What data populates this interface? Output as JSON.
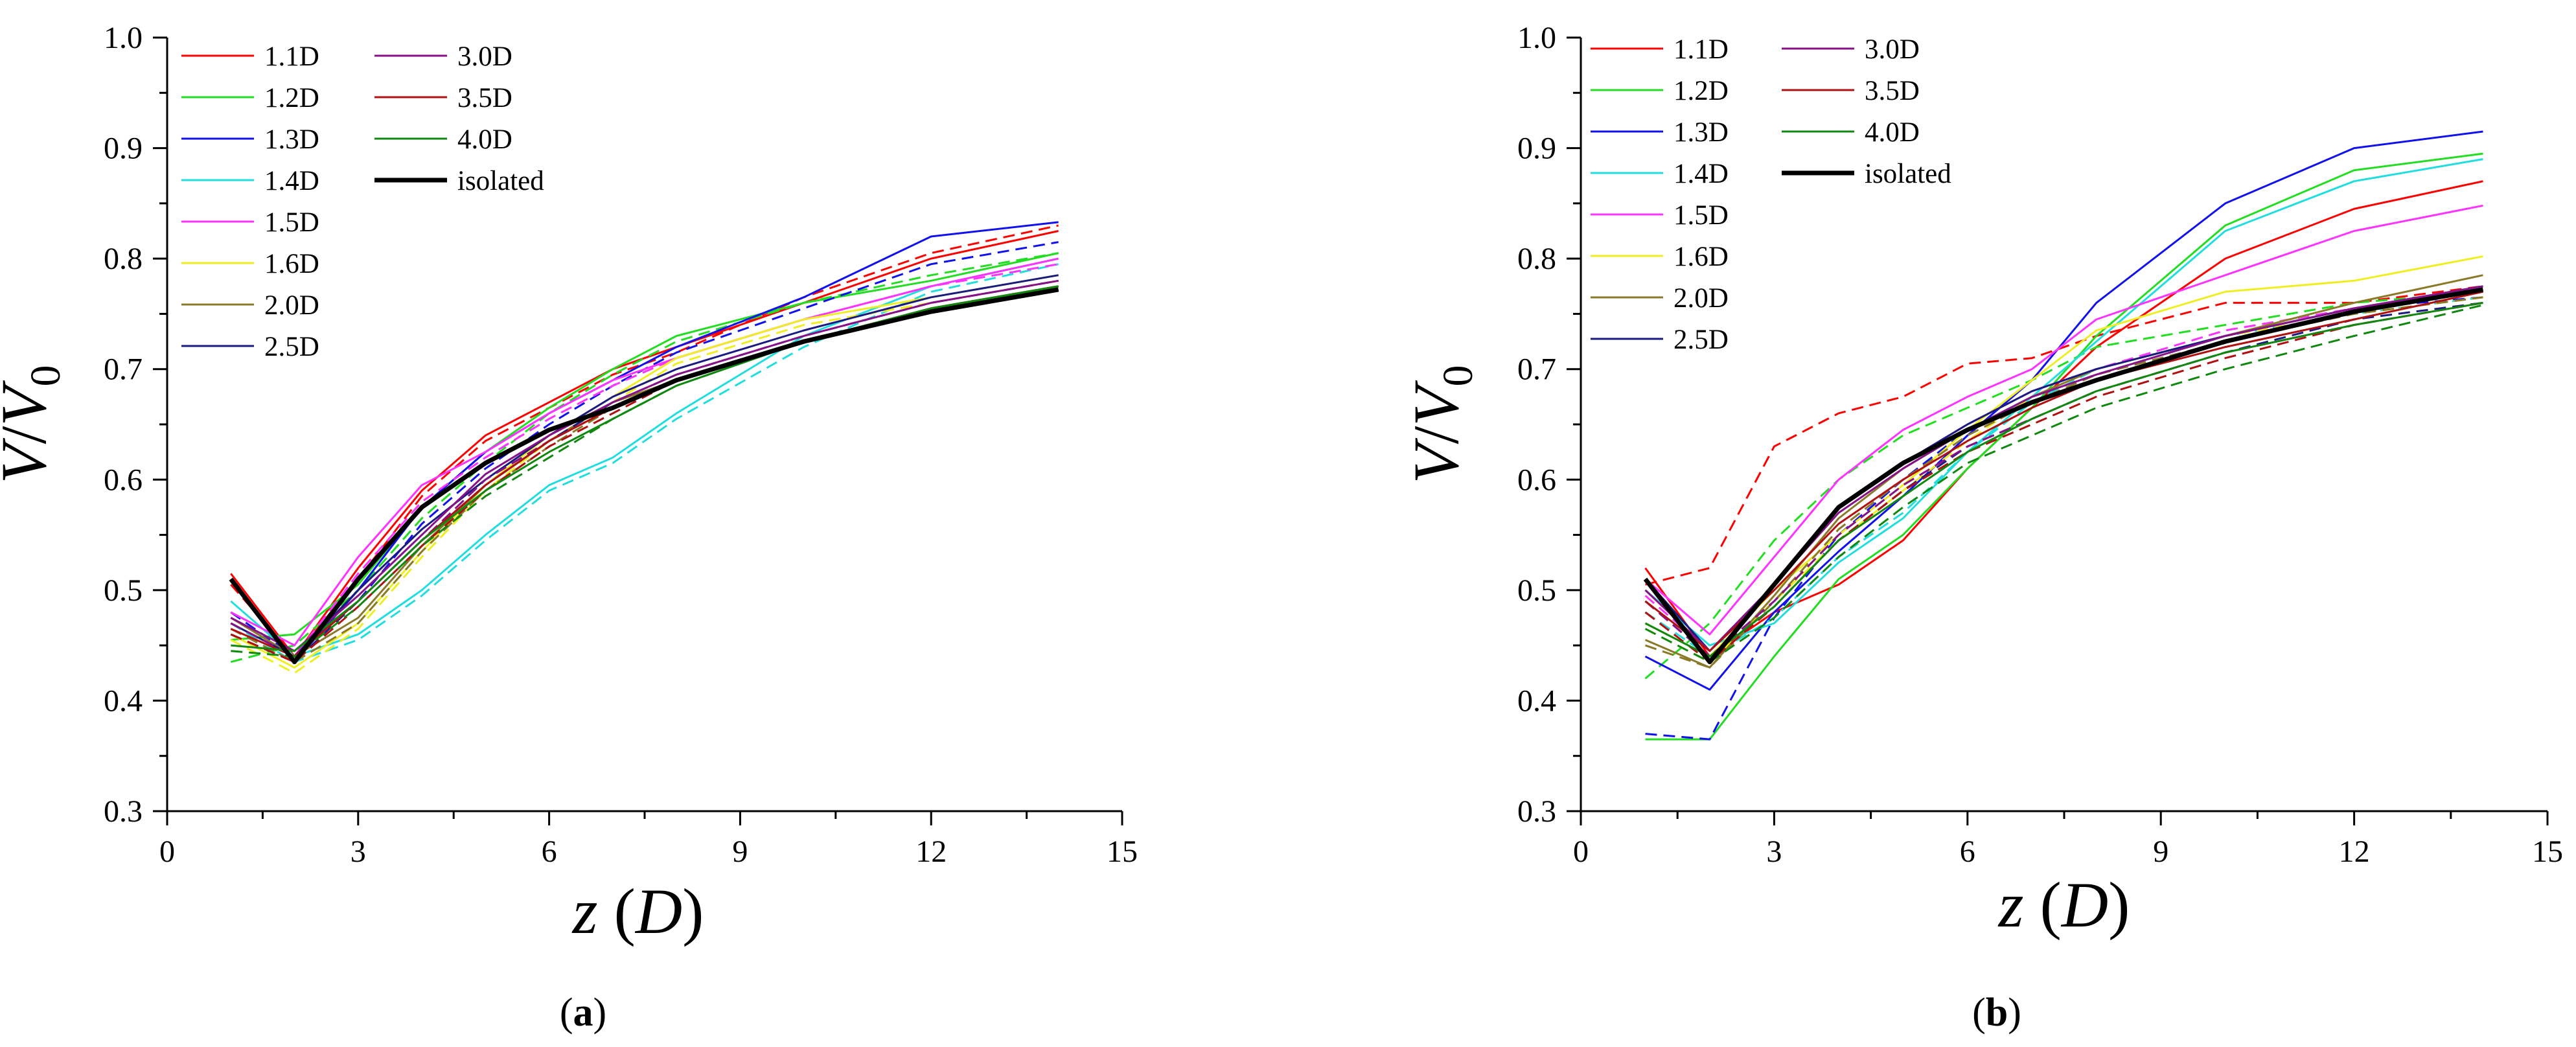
{
  "colors": {
    "1.1D": "#ff0000",
    "1.2D": "#22dd22",
    "1.3D": "#1111ee",
    "1.4D": "#22dddd",
    "1.5D": "#ff33ff",
    "1.6D": "#eeee22",
    "2.0D": "#8a7a28",
    "2.5D": "#1a1a80",
    "3.0D": "#881188",
    "3.5D": "#b01010",
    "4.0D": "#108810",
    "isolated": "#000000"
  },
  "legend_order": [
    "1.1D",
    "1.2D",
    "1.3D",
    "1.4D",
    "1.5D",
    "1.6D",
    "2.0D",
    "2.5D",
    "3.0D",
    "3.5D",
    "4.0D",
    "isolated"
  ],
  "chart_data": [
    {
      "type": "line",
      "panel_label": "(a)",
      "xlabel": "z (D)",
      "ylabel": "V/V0",
      "xlim": [
        0,
        15
      ],
      "ylim": [
        0.3,
        1.0
      ],
      "xticks": [
        0,
        3,
        6,
        9,
        12,
        15
      ],
      "yticks": [
        0.3,
        0.4,
        0.5,
        0.6,
        0.7,
        0.8,
        0.9,
        1.0
      ],
      "x": [
        1,
        2,
        3,
        4,
        5,
        6,
        7,
        8,
        10,
        12,
        14
      ],
      "series": [
        {
          "name": "1.1D",
          "style": "solid",
          "values": [
            0.515,
            0.44,
            0.52,
            0.59,
            0.64,
            0.67,
            0.7,
            0.72,
            0.76,
            0.8,
            0.825
          ]
        },
        {
          "name": "1.1D",
          "style": "dashed",
          "values": [
            0.505,
            0.44,
            0.51,
            0.585,
            0.635,
            0.665,
            0.695,
            0.715,
            0.765,
            0.805,
            0.83
          ]
        },
        {
          "name": "1.2D",
          "style": "solid",
          "values": [
            0.455,
            0.46,
            0.505,
            0.575,
            0.625,
            0.665,
            0.7,
            0.73,
            0.76,
            0.78,
            0.805
          ]
        },
        {
          "name": "1.2D",
          "style": "dashed",
          "values": [
            0.435,
            0.45,
            0.5,
            0.565,
            0.615,
            0.66,
            0.695,
            0.725,
            0.76,
            0.785,
            0.805
          ]
        },
        {
          "name": "1.3D",
          "style": "solid",
          "values": [
            0.51,
            0.435,
            0.5,
            0.575,
            0.625,
            0.66,
            0.69,
            0.72,
            0.765,
            0.82,
            0.833
          ]
        },
        {
          "name": "1.3D",
          "style": "dashed",
          "values": [
            0.48,
            0.44,
            0.49,
            0.56,
            0.61,
            0.65,
            0.685,
            0.715,
            0.755,
            0.795,
            0.815
          ]
        },
        {
          "name": "1.4D",
          "style": "solid",
          "values": [
            0.49,
            0.44,
            0.46,
            0.5,
            0.55,
            0.595,
            0.62,
            0.66,
            0.73,
            0.775,
            0.8
          ]
        },
        {
          "name": "1.4D",
          "style": "dashed",
          "values": [
            0.47,
            0.435,
            0.455,
            0.495,
            0.545,
            0.59,
            0.615,
            0.655,
            0.72,
            0.77,
            0.795
          ]
        },
        {
          "name": "1.5D",
          "style": "solid",
          "values": [
            0.48,
            0.45,
            0.53,
            0.595,
            0.625,
            0.66,
            0.69,
            0.71,
            0.745,
            0.775,
            0.8
          ]
        },
        {
          "name": "1.5D",
          "style": "dashed",
          "values": [
            0.465,
            0.44,
            0.515,
            0.58,
            0.62,
            0.655,
            0.685,
            0.71,
            0.745,
            0.775,
            0.795
          ]
        },
        {
          "name": "1.6D",
          "style": "solid",
          "values": [
            0.46,
            0.43,
            0.47,
            0.535,
            0.595,
            0.64,
            0.675,
            0.71,
            0.745,
            0.765,
            0.785
          ]
        },
        {
          "name": "1.6D",
          "style": "dashed",
          "values": [
            0.455,
            0.425,
            0.465,
            0.53,
            0.59,
            0.635,
            0.67,
            0.705,
            0.74,
            0.76,
            0.78
          ]
        },
        {
          "name": "2.0D",
          "style": "solid",
          "values": [
            0.475,
            0.44,
            0.475,
            0.54,
            0.595,
            0.635,
            0.67,
            0.69,
            0.725,
            0.755,
            0.775
          ]
        },
        {
          "name": "2.0D",
          "style": "dashed",
          "values": [
            0.465,
            0.435,
            0.47,
            0.535,
            0.59,
            0.63,
            0.665,
            0.69,
            0.725,
            0.755,
            0.775
          ]
        },
        {
          "name": "2.5D",
          "style": "solid",
          "values": [
            0.47,
            0.44,
            0.5,
            0.555,
            0.6,
            0.64,
            0.675,
            0.7,
            0.735,
            0.765,
            0.785
          ]
        },
        {
          "name": "2.5D",
          "style": "dashed",
          "values": [
            0.46,
            0.435,
            0.49,
            0.545,
            0.595,
            0.635,
            0.67,
            0.695,
            0.73,
            0.76,
            0.78
          ]
        },
        {
          "name": "3.0D",
          "style": "solid",
          "values": [
            0.475,
            0.445,
            0.495,
            0.55,
            0.605,
            0.64,
            0.67,
            0.695,
            0.73,
            0.76,
            0.78
          ]
        },
        {
          "name": "3.0D",
          "style": "dashed",
          "values": [
            0.47,
            0.44,
            0.49,
            0.545,
            0.6,
            0.635,
            0.665,
            0.69,
            0.725,
            0.755,
            0.775
          ]
        },
        {
          "name": "3.5D",
          "style": "solid",
          "values": [
            0.465,
            0.44,
            0.49,
            0.545,
            0.595,
            0.635,
            0.665,
            0.69,
            0.725,
            0.755,
            0.775
          ]
        },
        {
          "name": "3.5D",
          "style": "dashed",
          "values": [
            0.46,
            0.435,
            0.485,
            0.54,
            0.59,
            0.63,
            0.66,
            0.69,
            0.725,
            0.755,
            0.775
          ]
        },
        {
          "name": "4.0D",
          "style": "solid",
          "values": [
            0.45,
            0.445,
            0.49,
            0.545,
            0.59,
            0.625,
            0.655,
            0.685,
            0.725,
            0.755,
            0.775
          ]
        },
        {
          "name": "4.0D",
          "style": "dashed",
          "values": [
            0.445,
            0.44,
            0.485,
            0.54,
            0.585,
            0.62,
            0.655,
            0.685,
            0.725,
            0.755,
            0.775
          ]
        },
        {
          "name": "isolated",
          "style": "solid",
          "width": "bold",
          "values": [
            0.51,
            0.435,
            0.51,
            0.575,
            0.615,
            0.645,
            0.665,
            0.69,
            0.725,
            0.752,
            0.772
          ]
        }
      ]
    },
    {
      "type": "line",
      "panel_label": "(b)",
      "xlabel": "z (D)",
      "ylabel": "V/V0",
      "xlim": [
        0,
        15
      ],
      "ylim": [
        0.3,
        1.0
      ],
      "xticks": [
        0,
        3,
        6,
        9,
        12,
        15
      ],
      "yticks": [
        0.3,
        0.4,
        0.5,
        0.6,
        0.7,
        0.8,
        0.9,
        1.0
      ],
      "x": [
        1,
        2,
        3,
        4,
        5,
        6,
        7,
        8,
        10,
        12,
        14
      ],
      "series": [
        {
          "name": "1.1D",
          "style": "solid",
          "values": [
            0.52,
            0.44,
            0.48,
            0.505,
            0.545,
            0.61,
            0.665,
            0.72,
            0.8,
            0.845,
            0.87
          ]
        },
        {
          "name": "1.1D",
          "style": "dashed",
          "values": [
            0.505,
            0.52,
            0.63,
            0.66,
            0.675,
            0.705,
            0.71,
            0.73,
            0.76,
            0.76,
            0.775
          ]
        },
        {
          "name": "1.2D",
          "style": "solid",
          "values": [
            0.365,
            0.365,
            0.44,
            0.51,
            0.55,
            0.61,
            0.665,
            0.73,
            0.83,
            0.88,
            0.895
          ]
        },
        {
          "name": "1.2D",
          "style": "dashed",
          "values": [
            0.42,
            0.47,
            0.545,
            0.6,
            0.64,
            0.665,
            0.69,
            0.72,
            0.74,
            0.76,
            0.77
          ]
        },
        {
          "name": "1.3D",
          "style": "solid",
          "values": [
            0.44,
            0.41,
            0.48,
            0.535,
            0.585,
            0.64,
            0.69,
            0.76,
            0.85,
            0.9,
            0.915
          ]
        },
        {
          "name": "1.3D",
          "style": "dashed",
          "values": [
            0.37,
            0.365,
            0.475,
            0.55,
            0.6,
            0.645,
            0.675,
            0.695,
            0.73,
            0.755,
            0.765
          ]
        },
        {
          "name": "1.4D",
          "style": "solid",
          "values": [
            0.5,
            0.45,
            0.47,
            0.525,
            0.565,
            0.625,
            0.675,
            0.725,
            0.825,
            0.87,
            0.89
          ]
        },
        {
          "name": "1.4D",
          "style": "dashed",
          "values": [
            0.48,
            0.44,
            0.475,
            0.53,
            0.57,
            0.625,
            0.67,
            0.7,
            0.73,
            0.75,
            0.765
          ]
        },
        {
          "name": "1.5D",
          "style": "solid",
          "values": [
            0.51,
            0.46,
            0.53,
            0.6,
            0.645,
            0.675,
            0.7,
            0.745,
            0.785,
            0.825,
            0.848
          ]
        },
        {
          "name": "1.5D",
          "style": "dashed",
          "values": [
            0.495,
            0.445,
            0.505,
            0.575,
            0.615,
            0.65,
            0.68,
            0.7,
            0.735,
            0.755,
            0.77
          ]
        },
        {
          "name": "1.6D",
          "style": "solid",
          "values": [
            0.47,
            0.44,
            0.5,
            0.55,
            0.595,
            0.645,
            0.69,
            0.735,
            0.77,
            0.78,
            0.802
          ]
        },
        {
          "name": "1.6D",
          "style": "dashed",
          "values": [
            0.465,
            0.435,
            0.49,
            0.545,
            0.59,
            0.635,
            0.675,
            0.7,
            0.73,
            0.75,
            0.765
          ]
        },
        {
          "name": "2.0D",
          "style": "solid",
          "values": [
            0.455,
            0.43,
            0.495,
            0.565,
            0.61,
            0.645,
            0.675,
            0.7,
            0.73,
            0.76,
            0.785
          ]
        },
        {
          "name": "2.0D",
          "style": "dashed",
          "values": [
            0.45,
            0.43,
            0.49,
            0.555,
            0.6,
            0.64,
            0.67,
            0.695,
            0.725,
            0.75,
            0.765
          ]
        },
        {
          "name": "2.5D",
          "style": "solid",
          "values": [
            0.51,
            0.445,
            0.505,
            0.575,
            0.615,
            0.65,
            0.68,
            0.7,
            0.73,
            0.755,
            0.775
          ]
        },
        {
          "name": "2.5D",
          "style": "dashed",
          "values": [
            0.49,
            0.44,
            0.485,
            0.545,
            0.59,
            0.63,
            0.655,
            0.68,
            0.715,
            0.745,
            0.76
          ]
        },
        {
          "name": "3.0D",
          "style": "solid",
          "values": [
            0.5,
            0.445,
            0.505,
            0.57,
            0.61,
            0.645,
            0.675,
            0.695,
            0.73,
            0.755,
            0.775
          ]
        },
        {
          "name": "3.0D",
          "style": "dashed",
          "values": [
            0.49,
            0.44,
            0.49,
            0.55,
            0.595,
            0.63,
            0.655,
            0.68,
            0.715,
            0.74,
            0.76
          ]
        },
        {
          "name": "3.5D",
          "style": "solid",
          "values": [
            0.49,
            0.445,
            0.5,
            0.56,
            0.6,
            0.635,
            0.665,
            0.69,
            0.72,
            0.745,
            0.77
          ]
        },
        {
          "name": "3.5D",
          "style": "dashed",
          "values": [
            0.48,
            0.435,
            0.485,
            0.545,
            0.59,
            0.625,
            0.65,
            0.675,
            0.71,
            0.74,
            0.76
          ]
        },
        {
          "name": "4.0D",
          "style": "solid",
          "values": [
            0.47,
            0.44,
            0.485,
            0.545,
            0.585,
            0.625,
            0.655,
            0.68,
            0.715,
            0.74,
            0.76
          ]
        },
        {
          "name": "4.0D",
          "style": "dashed",
          "values": [
            0.465,
            0.435,
            0.475,
            0.53,
            0.575,
            0.615,
            0.64,
            0.665,
            0.7,
            0.73,
            0.758
          ]
        },
        {
          "name": "isolated",
          "style": "solid",
          "width": "bold",
          "values": [
            0.51,
            0.435,
            0.505,
            0.575,
            0.615,
            0.645,
            0.67,
            0.69,
            0.725,
            0.752,
            0.772
          ]
        }
      ]
    }
  ]
}
